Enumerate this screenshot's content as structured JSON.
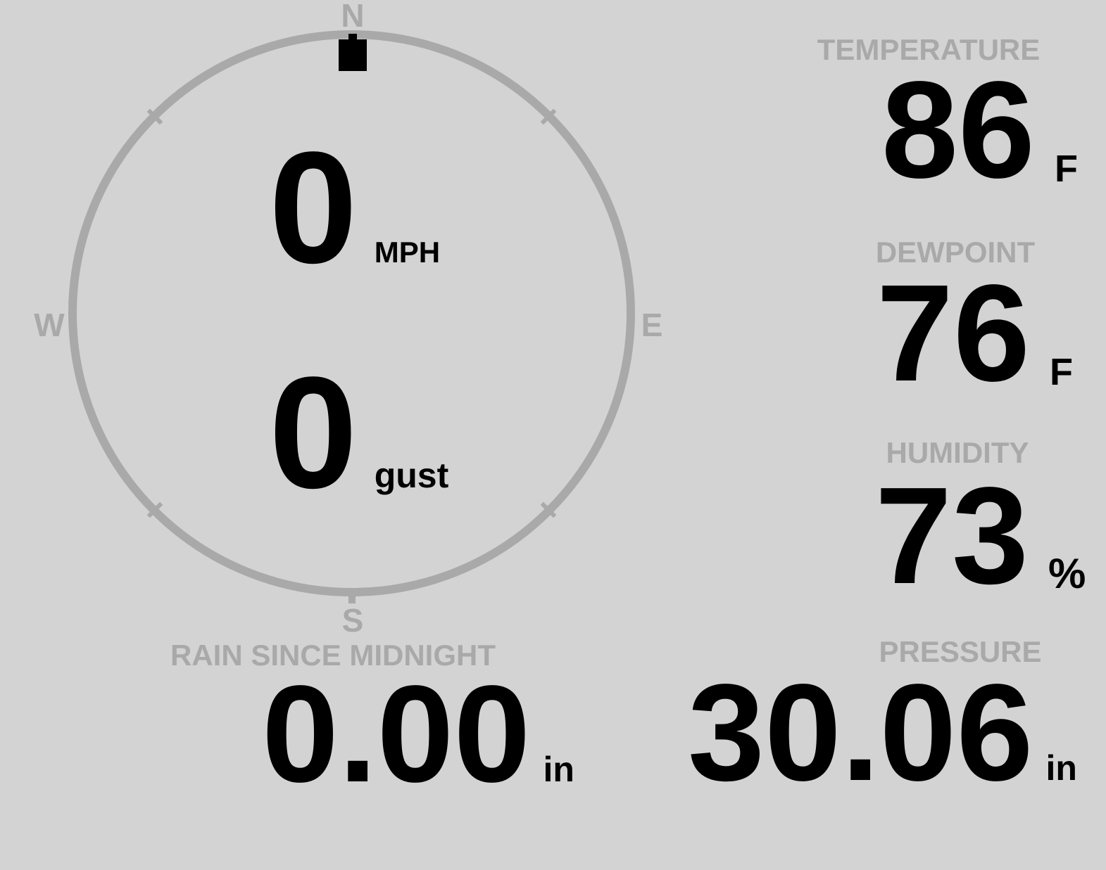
{
  "colors": {
    "background": "#d3d3d3",
    "muted_gray": "#a9a9a9",
    "value_black": "#000000"
  },
  "wind_gauge": {
    "compass": {
      "north": "N",
      "east": "E",
      "south": "S",
      "west": "W"
    },
    "direction_marker": "north",
    "speed": {
      "value": "0",
      "unit": "MPH"
    },
    "gust": {
      "value": "0",
      "unit": "gust"
    }
  },
  "metrics": [
    {
      "label": "TEMPERATURE",
      "value": "86",
      "unit": "F"
    },
    {
      "label": "DEWPOINT",
      "value": "76",
      "unit": "F"
    },
    {
      "label": "HUMIDITY",
      "value": "73",
      "unit": "%"
    }
  ],
  "footer_metrics": [
    {
      "label": "RAIN SINCE MIDNIGHT",
      "value": "0.00",
      "unit": "in"
    },
    {
      "label": "PRESSURE",
      "value": "30.06",
      "unit": "in"
    }
  ]
}
